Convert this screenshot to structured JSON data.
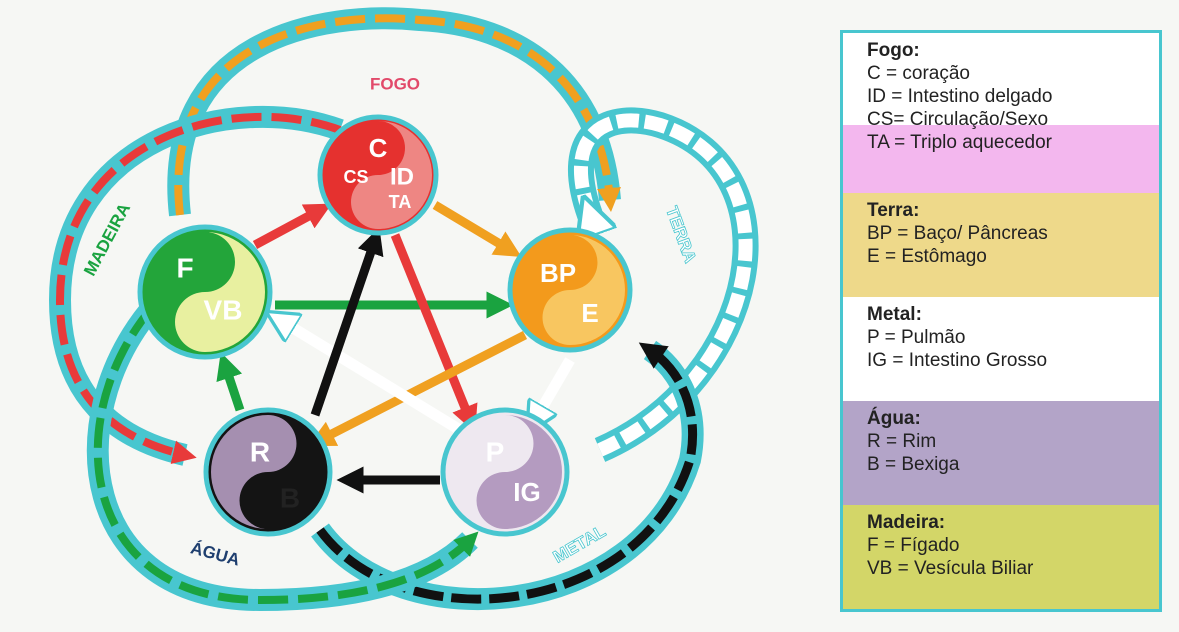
{
  "diagram": {
    "element_labels": [
      "FOGO",
      "MADEIRA",
      "TERRA",
      "METAL",
      "ÁGUA"
    ],
    "nodes": [
      {
        "letters": [
          "C",
          "CS",
          "ID",
          "TA"
        ]
      },
      {
        "letters": [
          "F",
          "VB"
        ]
      },
      {
        "letters": [
          "BP",
          "E"
        ]
      },
      {
        "letters": [
          "P",
          "IG"
        ]
      },
      {
        "letters": [
          "R",
          "B"
        ]
      }
    ]
  },
  "legend": {
    "sections": [
      {
        "title": "Fogo:",
        "items": [
          "C = coração",
          "ID = Intestino delgado",
          "CS= Circulação/Sexo",
          "TA = Triplo aquecedor"
        ]
      },
      {
        "title": "Terra:",
        "items": [
          "BP = Baço/ Pâncreas",
          "E = Estômago"
        ]
      },
      {
        "title": "Metal:",
        "items": [
          "P = Pulmão",
          "IG = Intestino Grosso"
        ]
      },
      {
        "title": "Água:",
        "items": [
          "R = Rim",
          "B = Bexiga"
        ]
      },
      {
        "title": "Madeira:",
        "items": [
          "F = Fígado",
          "VB = Vesícula Biliar"
        ]
      }
    ]
  }
}
